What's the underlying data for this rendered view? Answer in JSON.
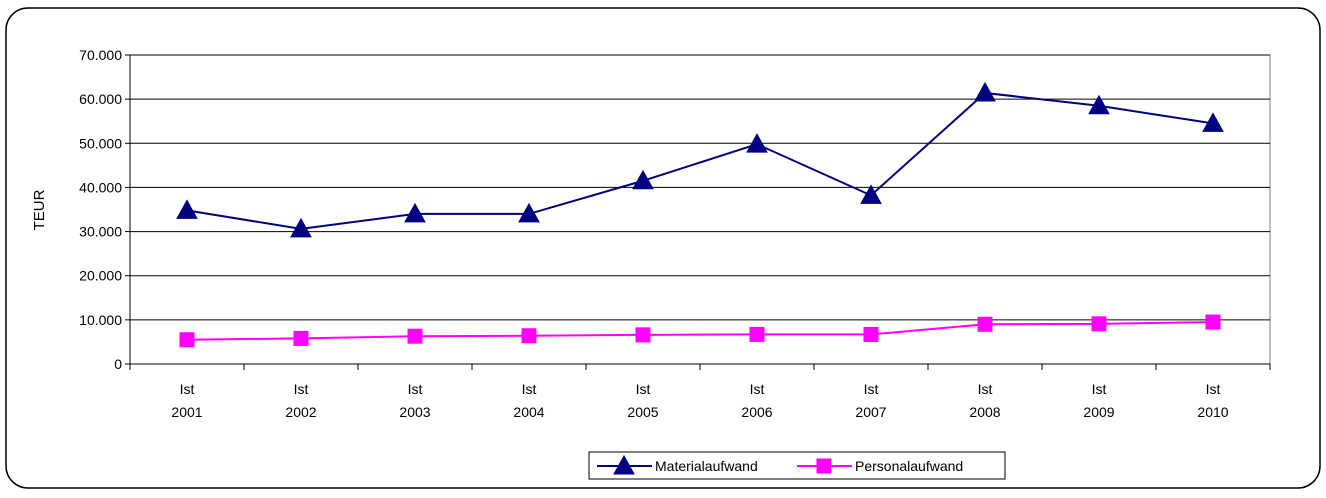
{
  "chart_data": {
    "type": "line",
    "title": "",
    "xlabel": "",
    "ylabel": "TEUR",
    "ylim": [
      0,
      70000
    ],
    "y_ticks": [
      0,
      10000,
      20000,
      30000,
      40000,
      50000,
      60000,
      70000
    ],
    "y_tick_labels": [
      "0",
      "10.000",
      "20.000",
      "30.000",
      "40.000",
      "50.000",
      "60.000",
      "70.000"
    ],
    "categories": [
      [
        "Ist",
        "2001"
      ],
      [
        "Ist",
        "2002"
      ],
      [
        "Ist",
        "2003"
      ],
      [
        "Ist",
        "2004"
      ],
      [
        "Ist",
        "2005"
      ],
      [
        "Ist",
        "2006"
      ],
      [
        "Ist",
        "2007"
      ],
      [
        "Ist",
        "2008"
      ],
      [
        "Ist",
        "2009"
      ],
      [
        "Ist",
        "2010"
      ]
    ],
    "grid": "horizontal",
    "legend_position": "bottom",
    "series": [
      {
        "name": "Materialaufwand",
        "color": "#000080",
        "marker": "triangle",
        "values": [
          34800,
          30600,
          34000,
          34000,
          41500,
          49800,
          38200,
          61400,
          58500,
          54500
        ]
      },
      {
        "name": "Personalaufwand",
        "color": "#ff00ff",
        "marker": "square",
        "values": [
          5500,
          5800,
          6300,
          6400,
          6600,
          6700,
          6700,
          9000,
          9100,
          9500
        ]
      }
    ]
  }
}
